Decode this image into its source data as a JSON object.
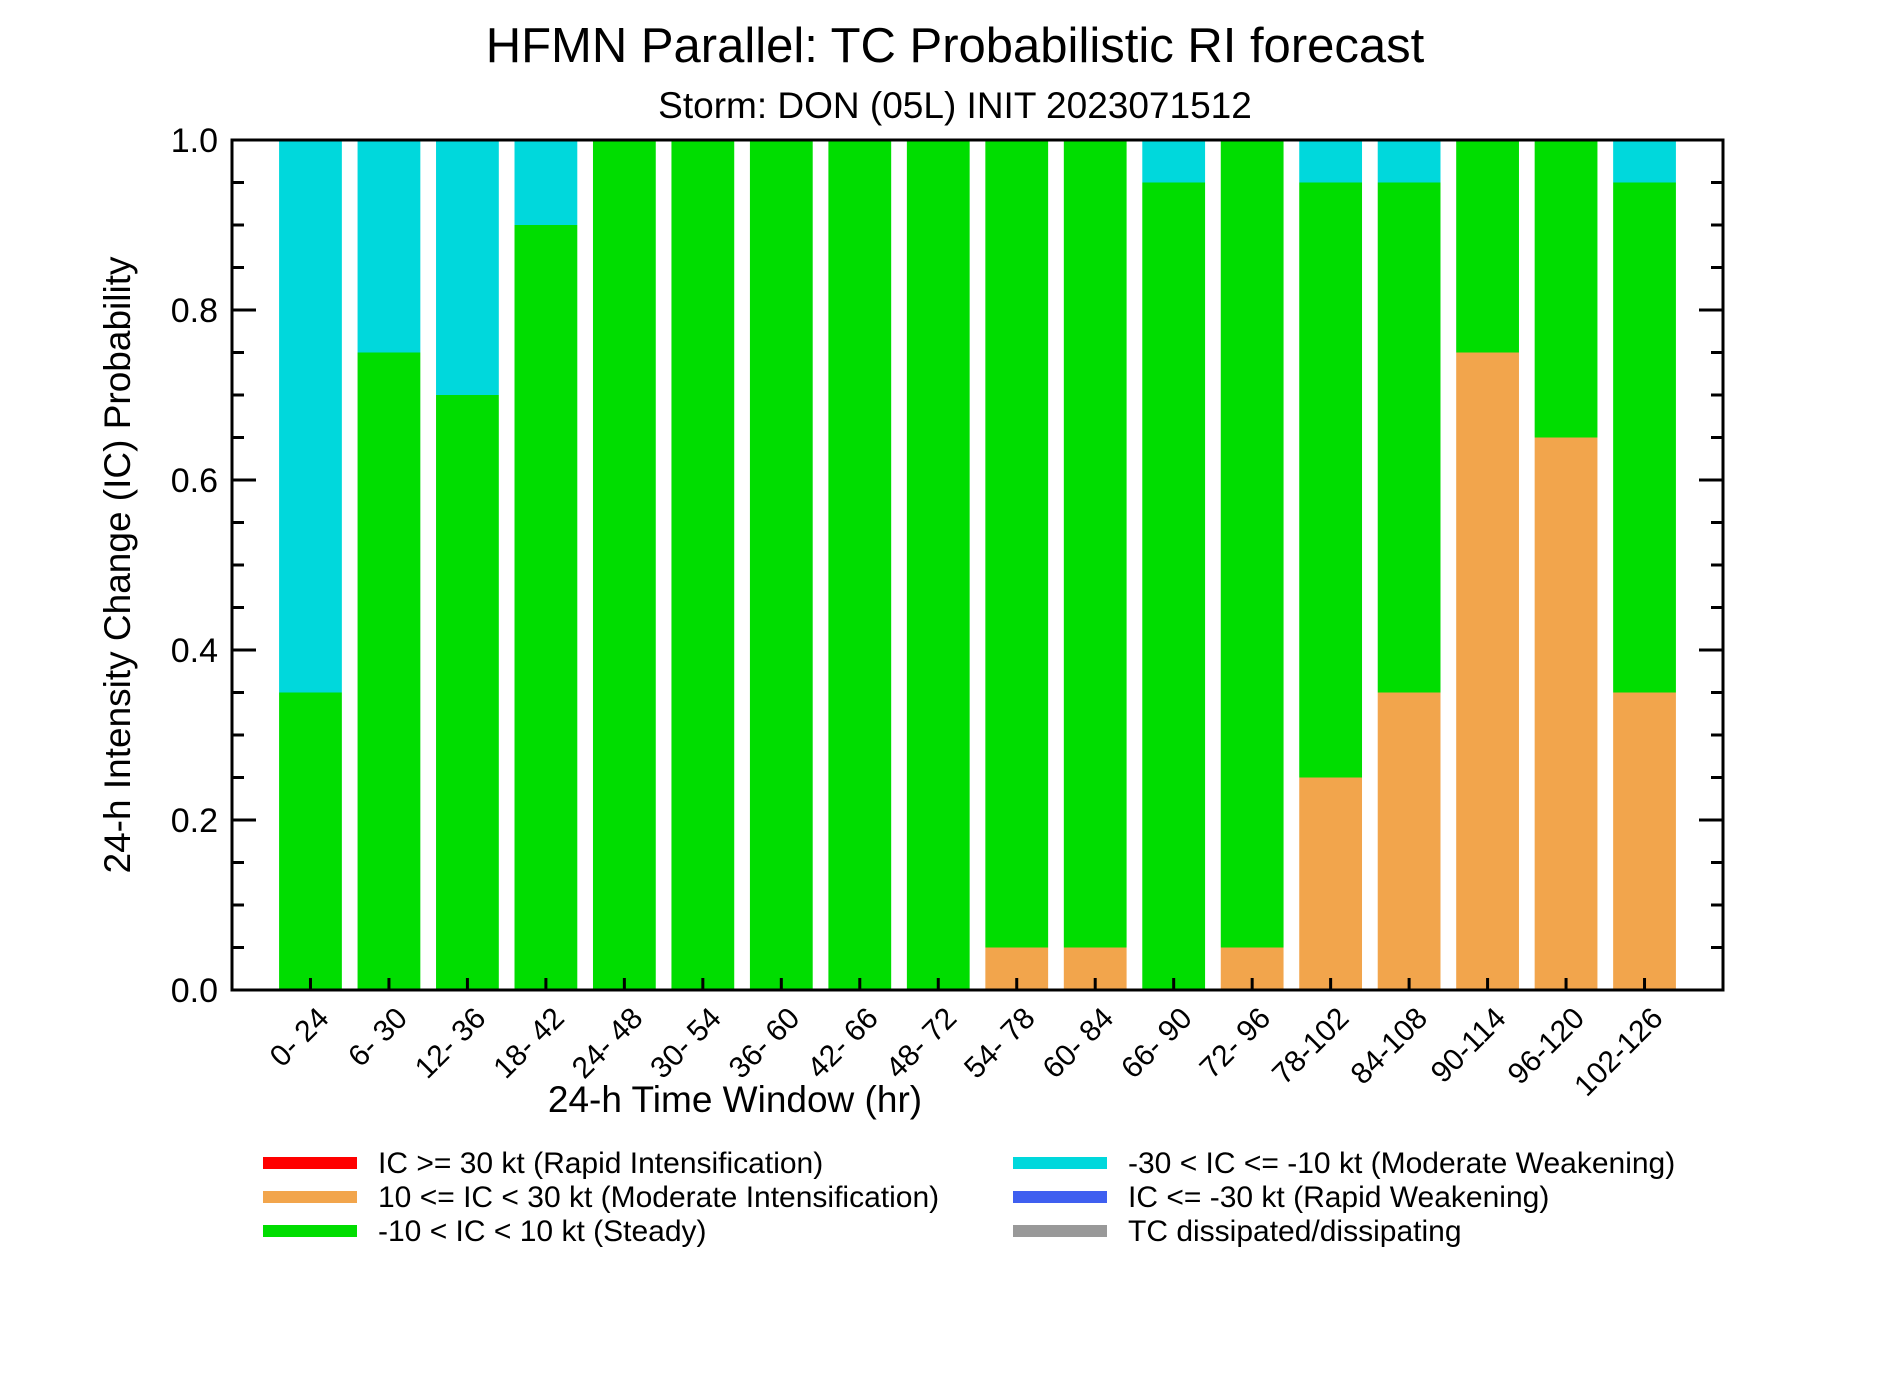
{
  "chart_data": {
    "type": "bar",
    "stacked": true,
    "title": "HFMN Parallel: TC Probabilistic RI forecast",
    "subtitle": "Storm: DON (05L) INIT 2023071512",
    "xlabel": "24-h Time Window (hr)",
    "ylabel": "24-h Intensity Change (IC) Probability",
    "ylim": [
      0,
      1
    ],
    "yticks": [
      "0.0",
      "0.2",
      "0.4",
      "0.6",
      "0.8",
      "1.0"
    ],
    "ytick_values": [
      0,
      0.2,
      0.4,
      0.6,
      0.8,
      1.0
    ],
    "grid": false,
    "legend_position": "bottom",
    "categories": [
      "0- 24",
      "6- 30",
      "12- 36",
      "18- 42",
      "24- 48",
      "30- 54",
      "36- 60",
      "42- 66",
      "48- 72",
      "54- 78",
      "60- 84",
      "66- 90",
      "72- 96",
      "78-102",
      "84-108",
      "90-114",
      "96-120",
      "102-126"
    ],
    "series": [
      {
        "name": "IC >= 30 kt (Rapid Intensification)",
        "color": "#ff0000",
        "values": [
          0,
          0,
          0,
          0,
          0,
          0,
          0,
          0,
          0,
          0,
          0,
          0,
          0,
          0,
          0,
          0,
          0,
          0
        ]
      },
      {
        "name": "10 <= IC < 30 kt (Moderate Intensification)",
        "color": "#f2a54c",
        "values": [
          0,
          0,
          0,
          0,
          0,
          0,
          0,
          0,
          0,
          0.05,
          0.05,
          0,
          0.05,
          0.25,
          0.35,
          0.75,
          0.65,
          0.35
        ]
      },
      {
        "name": "-10 < IC < 10 kt (Steady)",
        "color": "#00dd00",
        "values": [
          0.35,
          0.75,
          0.7,
          0.9,
          1.0,
          1.0,
          1.0,
          1.0,
          1.0,
          0.95,
          0.95,
          0.95,
          0.95,
          0.7,
          0.6,
          0.25,
          0.35,
          0.6
        ]
      },
      {
        "name": "-30 < IC <= -10 kt (Moderate Weakening)",
        "color": "#00d8dc",
        "values": [
          0.65,
          0.25,
          0.3,
          0.1,
          0,
          0,
          0,
          0,
          0,
          0,
          0,
          0.05,
          0,
          0.05,
          0.05,
          0,
          0,
          0.05
        ]
      },
      {
        "name": "IC <= -30 kt (Rapid Weakening)",
        "color": "#3f5ff0",
        "values": [
          0,
          0,
          0,
          0,
          0,
          0,
          0,
          0,
          0,
          0,
          0,
          0,
          0,
          0,
          0,
          0,
          0,
          0
        ]
      },
      {
        "name": "TC dissipated/dissipating",
        "color": "#999999",
        "values": [
          0,
          0,
          0,
          0,
          0,
          0,
          0,
          0,
          0,
          0,
          0,
          0,
          0,
          0,
          0,
          0,
          0,
          0
        ]
      }
    ]
  }
}
